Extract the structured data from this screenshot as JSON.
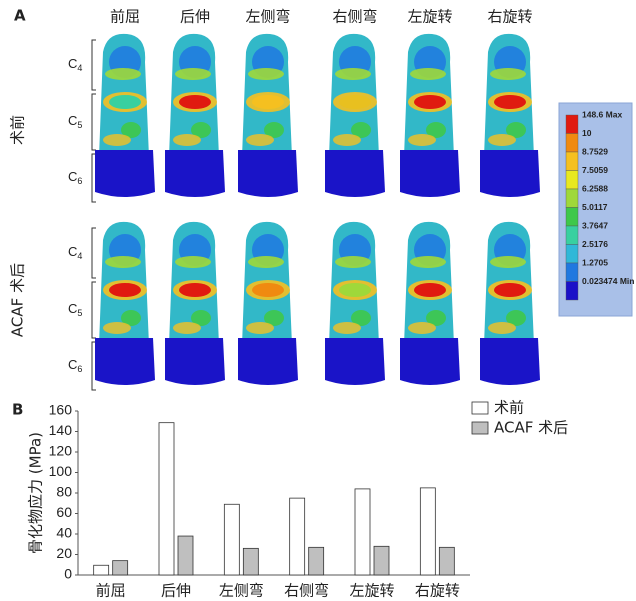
{
  "panel_a": {
    "label": "A",
    "columns": [
      "前屈",
      "后伸",
      "左侧弯",
      "右侧弯",
      "左旋转",
      "右旋转"
    ],
    "rows": [
      "术前",
      "ACAF 术后"
    ],
    "levels": [
      {
        "base": "C",
        "subscript": "4"
      },
      {
        "base": "C",
        "subscript": "5"
      },
      {
        "base": "C",
        "subscript": "6"
      }
    ],
    "colorbar": {
      "labels": [
        "148.6 Max",
        "10",
        "8.7529",
        "7.5059",
        "6.2588",
        "5.0117",
        "3.7647",
        "2.5176",
        "1.2705",
        "0.023474 Min"
      ],
      "colors": [
        "#e01a10",
        "#f08a10",
        "#f5c020",
        "#e8e820",
        "#9fd83a",
        "#3ec84a",
        "#38d0a0",
        "#30b8d8",
        "#2078e0",
        "#1a10c8"
      ]
    }
  },
  "chart_data": {
    "type": "bar",
    "label": "B",
    "y_label": "骨化物应力 (MPa)",
    "categories": [
      "前屈",
      "后伸",
      "左侧弯",
      "右侧弯",
      "左旋转",
      "右旋转"
    ],
    "series": [
      {
        "name": "术前",
        "color": "#ffffff",
        "values": [
          9.5,
          148.6,
          69,
          75,
          84,
          85
        ]
      },
      {
        "name": "ACAF 术后",
        "color": "#bfbfbf",
        "values": [
          14,
          38,
          26,
          27,
          28,
          27
        ]
      }
    ],
    "ylim": [
      0,
      160
    ],
    "yticks": [
      0,
      20,
      40,
      60,
      80,
      100,
      120,
      140,
      160
    ],
    "grid": false
  }
}
